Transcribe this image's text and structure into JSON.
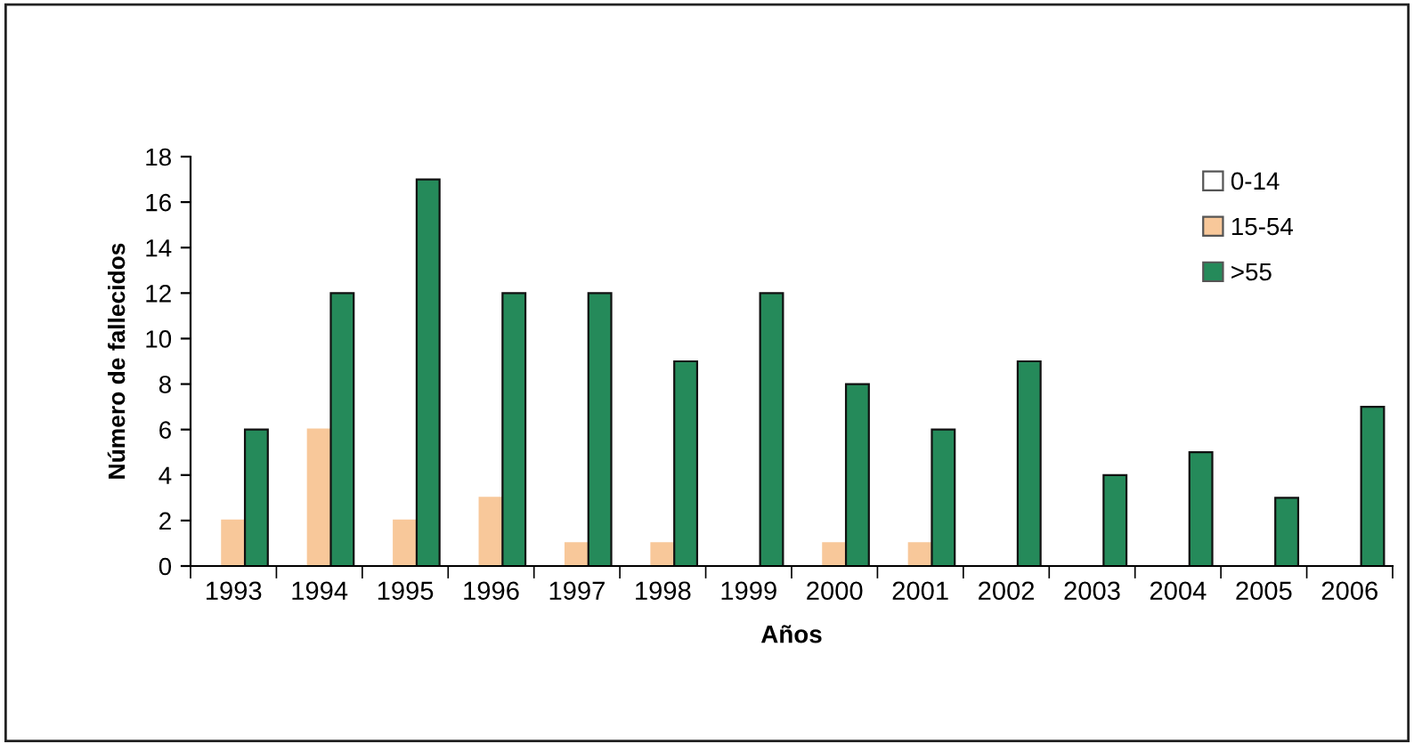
{
  "chart_data": {
    "type": "bar",
    "xlabel": "Años",
    "ylabel": "Número de fallecidos",
    "categories": [
      "1993",
      "1994",
      "1995",
      "1996",
      "1997",
      "1998",
      "1999",
      "2000",
      "2001",
      "2002",
      "2003",
      "2004",
      "2005",
      "2006"
    ],
    "series": [
      {
        "name": "0-14",
        "color": "#ffffff",
        "values": [
          0,
          0,
          0,
          0,
          0,
          0,
          0,
          0,
          0,
          0,
          0,
          0,
          0,
          0
        ]
      },
      {
        "name": "15-54",
        "color": "#f8c89a",
        "values": [
          2,
          6,
          2,
          3,
          1,
          1,
          0,
          1,
          1,
          0,
          0,
          0,
          0,
          0
        ]
      },
      {
        "name": ">55",
        "color": "#258a5a",
        "values": [
          6,
          12,
          17,
          12,
          12,
          9,
          12,
          8,
          6,
          9,
          4,
          5,
          3,
          7
        ]
      }
    ],
    "ylim": [
      0,
      18
    ],
    "yticks": [
      0,
      2,
      4,
      6,
      8,
      10,
      12,
      14,
      16,
      18
    ],
    "grid": false,
    "legend": "top right"
  }
}
